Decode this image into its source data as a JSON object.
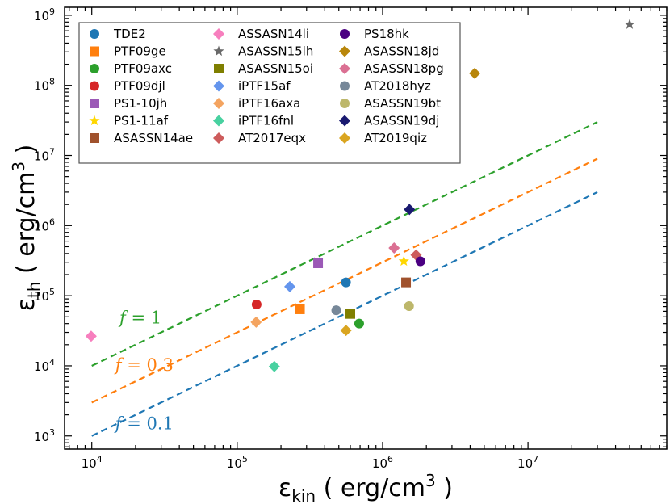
{
  "chart_data": {
    "type": "scatter",
    "xscale": "log",
    "yscale": "log",
    "xlim": [
      6500,
      90000000
    ],
    "ylim": [
      650,
      1300000000
    ],
    "xlabel_main": "ε",
    "xlabel_sub": "kin",
    "xlabel_unit": " ( erg/cm",
    "xlabel_exp": "3",
    "xlabel_end": " )",
    "ylabel_main": "ε",
    "ylabel_sub": "th",
    "ylabel_unit": " ( erg/cm",
    "ylabel_exp": "3",
    "ylabel_end": " )",
    "xticks": [
      {
        "value": 10000,
        "base": "10",
        "exp": "4"
      },
      {
        "value": 100000,
        "base": "10",
        "exp": "5"
      },
      {
        "value": 1000000,
        "base": "10",
        "exp": "6"
      },
      {
        "value": 10000000,
        "base": "10",
        "exp": "7"
      }
    ],
    "yticks": [
      {
        "value": 1000,
        "base": "10",
        "exp": "3"
      },
      {
        "value": 10000,
        "base": "10",
        "exp": "4"
      },
      {
        "value": 100000,
        "base": "10",
        "exp": "5"
      },
      {
        "value": 1000000,
        "base": "10",
        "exp": "6"
      },
      {
        "value": 10000000,
        "base": "10",
        "exp": "7"
      },
      {
        "value": 100000000,
        "base": "10",
        "exp": "8"
      },
      {
        "value": 1000000000,
        "base": "10",
        "exp": "9"
      }
    ],
    "lines": [
      {
        "name": "f = 1",
        "f_symbol": "f",
        "f_rest": " = 1",
        "f": 1,
        "color": "#2ca02c",
        "x_range": [
          10000,
          30000000
        ],
        "label_at": [
          15500,
          40000
        ]
      },
      {
        "name": "f = 0.3",
        "f_symbol": "f",
        "f_rest": " = 0.3",
        "f": 0.3,
        "color": "#ff7f0e",
        "x_range": [
          10000,
          30000000
        ],
        "label_at": [
          14500,
          8500
        ]
      },
      {
        "name": "f = 0.1",
        "f_symbol": "f",
        "f_rest": " = 0.1",
        "f": 0.1,
        "color": "#1f77b4",
        "x_range": [
          10000,
          30000000
        ],
        "label_at": [
          14500,
          1250
        ]
      }
    ],
    "series": [
      {
        "name": "TDE2",
        "marker": "circle",
        "color": "#1f77b4",
        "x": 560000,
        "y": 155000
      },
      {
        "name": "PTF09ge",
        "marker": "square",
        "color": "#ff7f0e",
        "x": 270000,
        "y": 64000
      },
      {
        "name": "PTF09axc",
        "marker": "circle",
        "color": "#2ca02c",
        "x": 690000,
        "y": 40000
      },
      {
        "name": "PTF09djl",
        "marker": "circle",
        "color": "#d62728",
        "x": 136000,
        "y": 75000
      },
      {
        "name": "PS1-10jh",
        "marker": "square",
        "color": "#9b59b6",
        "x": 360000,
        "y": 290000
      },
      {
        "name": "PS1-11af",
        "marker": "star",
        "color": "#ffd700",
        "x": 1400000,
        "y": 310000
      },
      {
        "name": "ASASSN14ae",
        "marker": "square",
        "color": "#a0522d",
        "x": 1450000,
        "y": 155000
      },
      {
        "name": "ASSASN14li",
        "marker": "diamond",
        "color": "#f77fbe",
        "x": 9900,
        "y": 26500
      },
      {
        "name": "ASASSN15lh",
        "marker": "star",
        "color": "#696969",
        "x": 50000000,
        "y": 740000000
      },
      {
        "name": "ASASSN15oi",
        "marker": "square",
        "color": "#7f7f00",
        "x": 600000,
        "y": 55000
      },
      {
        "name": "iPTF15af",
        "marker": "diamond",
        "color": "#6495ed",
        "x": 230000,
        "y": 135000
      },
      {
        "name": "iPTF16axa",
        "marker": "diamond",
        "color": "#f4a460",
        "x": 135000,
        "y": 42000
      },
      {
        "name": "iPTF16fnl",
        "marker": "diamond",
        "color": "#48d1a0",
        "x": 180000,
        "y": 9800
      },
      {
        "name": "AT2017eqx",
        "marker": "diamond",
        "color": "#cd5c5c",
        "x": 1700000,
        "y": 380000
      },
      {
        "name": "PS18hk",
        "marker": "circle",
        "color": "#4b0082",
        "x": 1820000,
        "y": 310000
      },
      {
        "name": "ASASSN18jd",
        "marker": "diamond",
        "color": "#b8860b",
        "x": 4300000,
        "y": 148000000
      },
      {
        "name": "ASASSN18pg",
        "marker": "diamond",
        "color": "#db7093",
        "x": 1200000,
        "y": 480000
      },
      {
        "name": "AT2018hyz",
        "marker": "circle",
        "color": "#778899",
        "x": 480000,
        "y": 62000
      },
      {
        "name": "ASASSN19bt",
        "marker": "circle",
        "color": "#bdb76b",
        "x": 1520000,
        "y": 71000
      },
      {
        "name": "ASASSN19dj",
        "marker": "diamond",
        "color": "#191970",
        "x": 1530000,
        "y": 1700000
      },
      {
        "name": "AT2019qiz",
        "marker": "diamond",
        "color": "#daa520",
        "x": 560000,
        "y": 32000
      }
    ],
    "legend": {
      "position": "top-left",
      "columns": 3
    }
  }
}
